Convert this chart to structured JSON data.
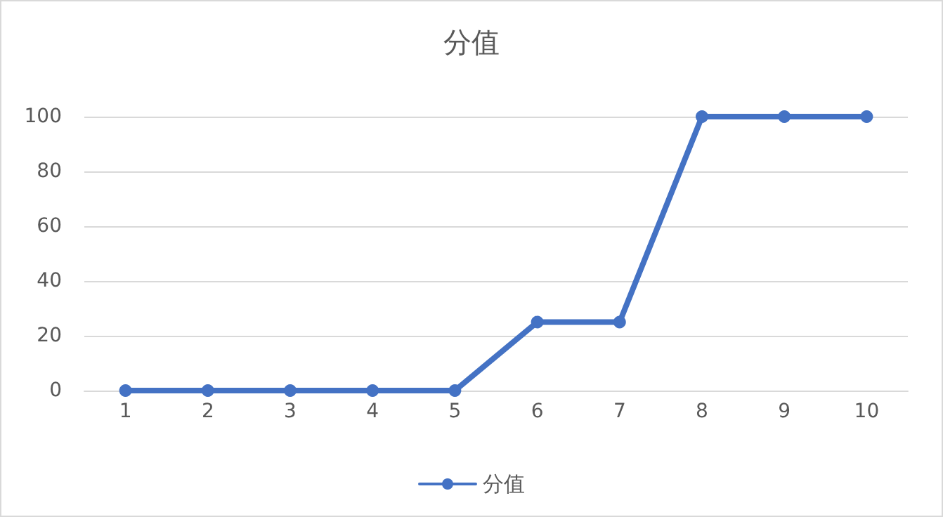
{
  "chart_data": {
    "type": "line",
    "title": "分值",
    "categories": [
      "1",
      "2",
      "3",
      "4",
      "5",
      "6",
      "7",
      "8",
      "9",
      "10"
    ],
    "series": [
      {
        "name": "分值",
        "color": "#4472c4",
        "values": [
          0,
          0,
          0,
          0,
          0,
          25,
          25,
          100,
          100,
          100
        ]
      }
    ],
    "ylim": [
      0,
      100
    ],
    "yticks": [
      0,
      20,
      40,
      60,
      80,
      100
    ],
    "grid": "y",
    "legend": "bottom",
    "marker": "circle",
    "line_style": "solid"
  }
}
